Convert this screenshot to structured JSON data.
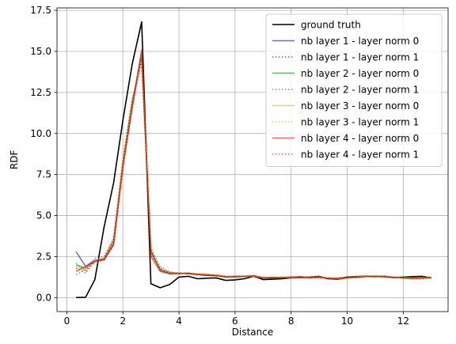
{
  "chart_data": {
    "type": "line",
    "title": "",
    "xlabel": "Distance",
    "ylabel": "RDF",
    "xlim": [
      -0.35,
      13.6
    ],
    "ylim": [
      -0.85,
      17.65
    ],
    "xticks": [
      0,
      2,
      4,
      6,
      8,
      10,
      12
    ],
    "yticks": [
      0.0,
      2.5,
      5.0,
      7.5,
      10.0,
      12.5,
      15.0,
      17.5
    ],
    "grid": true,
    "legend_position": "top-right",
    "x": [
      0.33,
      0.67,
      1.0,
      1.33,
      1.67,
      2.0,
      2.33,
      2.67,
      3.0,
      3.33,
      3.67,
      4.0,
      4.33,
      4.67,
      5.0,
      5.33,
      5.67,
      6.0,
      6.33,
      6.67,
      7.0,
      7.33,
      7.67,
      8.0,
      8.33,
      8.67,
      9.0,
      9.33,
      9.67,
      10.0,
      10.33,
      10.67,
      11.0,
      11.33,
      11.67,
      12.0,
      12.33,
      12.67,
      13.0
    ],
    "series": [
      {
        "name": "ground truth",
        "color": "#000000",
        "dash": "solid",
        "opacity": 1.0,
        "width": 1.6,
        "values": [
          0.0,
          0.02,
          1.1,
          4.3,
          7.0,
          10.8,
          14.2,
          16.8,
          0.85,
          0.6,
          0.8,
          1.25,
          1.3,
          1.15,
          1.18,
          1.2,
          1.05,
          1.08,
          1.15,
          1.3,
          1.1,
          1.12,
          1.15,
          1.2,
          1.22,
          1.25,
          1.3,
          1.15,
          1.12,
          1.25,
          1.28,
          1.3,
          1.28,
          1.3,
          1.22,
          1.25,
          1.28,
          1.3,
          1.2
        ]
      },
      {
        "name": "nb layer 1 - layer norm 0",
        "color": "#0000ff",
        "dash": "solid",
        "opacity": 0.6,
        "width": 1.5,
        "values": [
          2.8,
          1.9,
          2.3,
          2.3,
          3.2,
          8.0,
          11.5,
          14.9,
          2.8,
          1.7,
          1.45,
          1.5,
          1.45,
          1.4,
          1.35,
          1.35,
          1.25,
          1.3,
          1.3,
          1.3,
          1.2,
          1.2,
          1.22,
          1.25,
          1.22,
          1.2,
          1.25,
          1.2,
          1.15,
          1.22,
          1.25,
          1.3,
          1.28,
          1.3,
          1.25,
          1.22,
          1.2,
          1.22,
          1.22
        ]
      },
      {
        "name": "nb layer 1 - layer norm 1",
        "color": "#0000ff",
        "dash": "dot",
        "opacity": 0.6,
        "width": 1.5,
        "values": [
          1.8,
          1.5,
          2.2,
          2.3,
          3.3,
          8.3,
          11.8,
          14.6,
          2.6,
          1.8,
          1.5,
          1.45,
          1.5,
          1.4,
          1.35,
          1.3,
          1.28,
          1.25,
          1.3,
          1.25,
          1.2,
          1.22,
          1.2,
          1.22,
          1.25,
          1.22,
          1.2,
          1.18,
          1.2,
          1.25,
          1.22,
          1.28,
          1.3,
          1.25,
          1.22,
          1.2,
          1.22,
          1.2,
          1.25
        ]
      },
      {
        "name": "nb layer 2 - layer norm 0",
        "color": "#008000",
        "dash": "solid",
        "opacity": 0.6,
        "width": 1.5,
        "values": [
          2.0,
          1.8,
          2.2,
          2.4,
          3.5,
          8.2,
          11.9,
          14.8,
          2.9,
          1.65,
          1.5,
          1.5,
          1.45,
          1.42,
          1.38,
          1.35,
          1.28,
          1.3,
          1.28,
          1.32,
          1.22,
          1.2,
          1.25,
          1.22,
          1.28,
          1.22,
          1.25,
          1.18,
          1.2,
          1.25,
          1.3,
          1.28,
          1.3,
          1.32,
          1.22,
          1.25,
          1.22,
          1.2,
          1.25
        ]
      },
      {
        "name": "nb layer 2 - layer norm 1",
        "color": "#008000",
        "dash": "dot",
        "opacity": 0.6,
        "width": 1.5,
        "values": [
          2.1,
          1.6,
          2.4,
          2.5,
          3.6,
          8.4,
          12.0,
          14.5,
          3.0,
          1.9,
          1.55,
          1.48,
          1.5,
          1.45,
          1.4,
          1.38,
          1.3,
          1.28,
          1.32,
          1.3,
          1.25,
          1.22,
          1.2,
          1.25,
          1.22,
          1.25,
          1.22,
          1.2,
          1.18,
          1.22,
          1.28,
          1.35,
          1.3,
          1.28,
          1.25,
          1.22,
          1.25,
          1.22,
          1.2
        ]
      },
      {
        "name": "nb layer 3 - layer norm 0",
        "color": "#ffa500",
        "dash": "solid",
        "opacity": 0.6,
        "width": 1.5,
        "values": [
          1.9,
          1.7,
          2.3,
          2.4,
          3.4,
          8.1,
          11.7,
          15.0,
          2.7,
          1.6,
          1.45,
          1.5,
          1.48,
          1.45,
          1.42,
          1.38,
          1.3,
          1.25,
          1.3,
          1.28,
          1.2,
          1.25,
          1.22,
          1.2,
          1.25,
          1.22,
          1.28,
          1.2,
          1.15,
          1.2,
          1.25,
          1.3,
          1.32,
          1.3,
          1.25,
          1.2,
          1.18,
          1.2,
          1.22
        ]
      },
      {
        "name": "nb layer 3 - layer norm 1",
        "color": "#ffa500",
        "dash": "dot",
        "opacity": 0.6,
        "width": 1.5,
        "values": [
          1.7,
          1.8,
          2.1,
          2.3,
          3.8,
          8.6,
          12.2,
          14.2,
          3.1,
          1.85,
          1.6,
          1.45,
          1.5,
          1.48,
          1.45,
          1.4,
          1.32,
          1.3,
          1.28,
          1.3,
          1.22,
          1.22,
          1.25,
          1.2,
          1.22,
          1.28,
          1.25,
          1.22,
          1.2,
          1.18,
          1.25,
          1.32,
          1.35,
          1.28,
          1.22,
          1.2,
          1.22,
          1.25,
          1.2
        ]
      },
      {
        "name": "nb layer 4 - layer norm 0",
        "color": "#ff0000",
        "dash": "solid",
        "opacity": 0.6,
        "width": 1.5,
        "values": [
          1.6,
          1.9,
          2.2,
          2.3,
          3.3,
          7.9,
          11.6,
          15.1,
          2.5,
          1.6,
          1.45,
          1.45,
          1.5,
          1.4,
          1.38,
          1.35,
          1.25,
          1.28,
          1.3,
          1.35,
          1.2,
          1.22,
          1.2,
          1.25,
          1.28,
          1.22,
          1.25,
          1.15,
          1.12,
          1.2,
          1.22,
          1.28,
          1.3,
          1.25,
          1.22,
          1.2,
          1.15,
          1.18,
          1.2
        ]
      },
      {
        "name": "nb layer 4 - layer norm 1",
        "color": "#ff0000",
        "dash": "dot",
        "opacity": 0.6,
        "width": 1.5,
        "values": [
          1.4,
          1.7,
          2.2,
          2.4,
          3.5,
          8.2,
          12.0,
          14.3,
          2.7,
          1.75,
          1.55,
          1.5,
          1.45,
          1.42,
          1.4,
          1.35,
          1.28,
          1.22,
          1.28,
          1.32,
          1.2,
          1.25,
          1.22,
          1.2,
          1.25,
          1.2,
          1.22,
          1.18,
          1.15,
          1.22,
          1.25,
          1.3,
          1.28,
          1.3,
          1.22,
          1.18,
          1.2,
          1.15,
          1.22
        ]
      }
    ]
  }
}
